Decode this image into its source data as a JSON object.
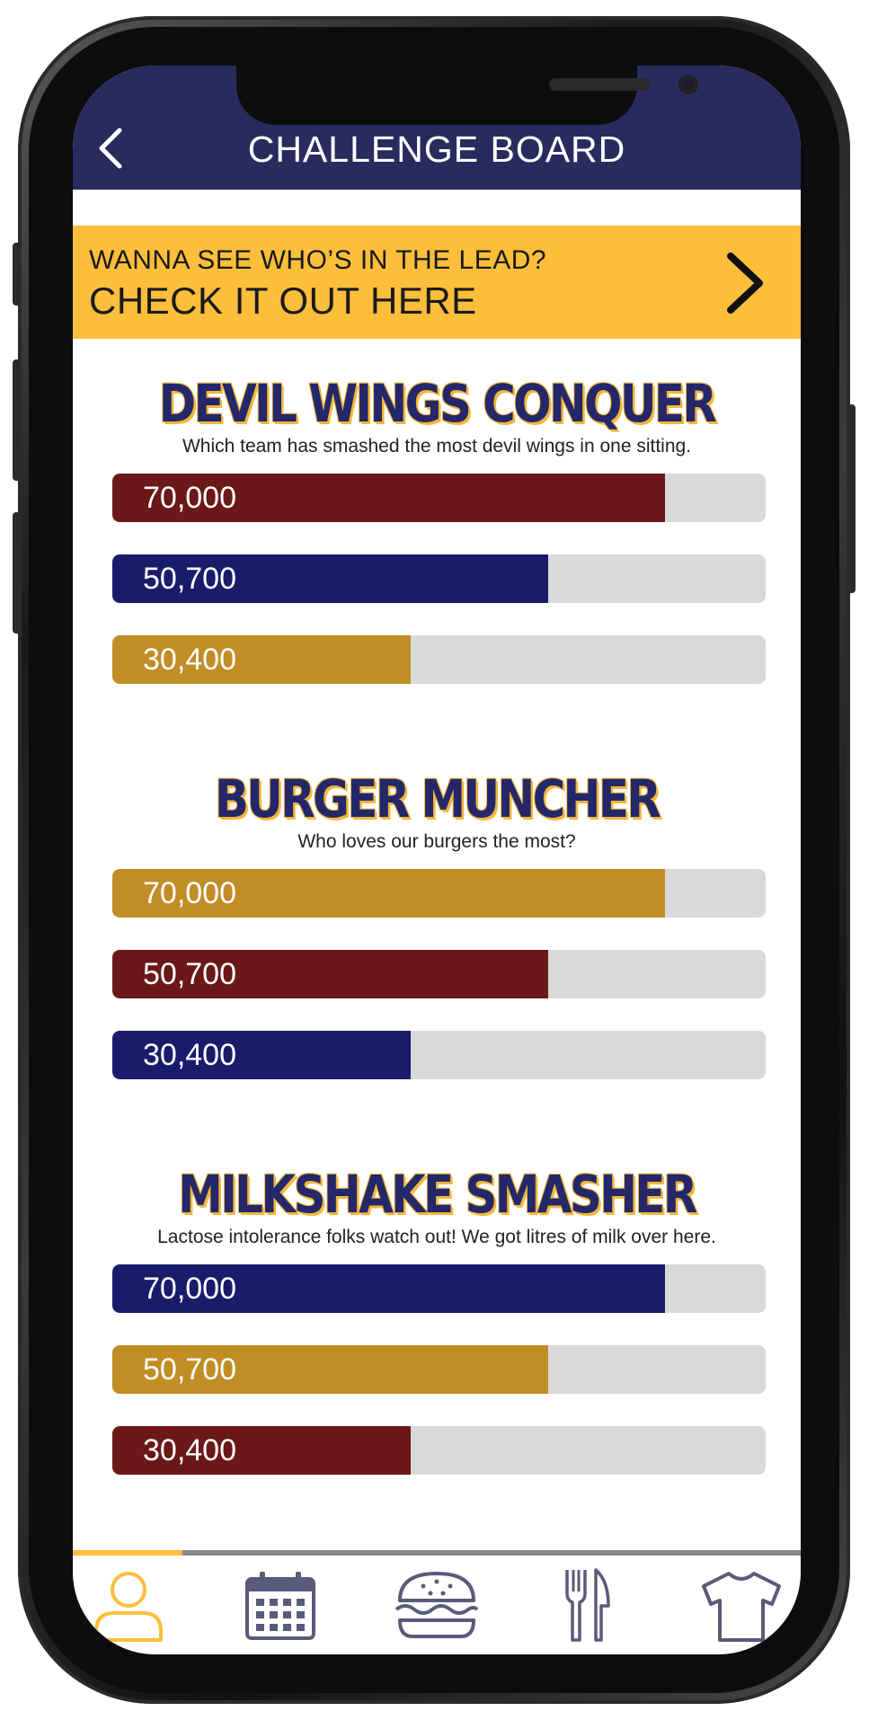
{
  "header": {
    "title": "CHALLENGE BOARD",
    "back_icon": "chevron-left-icon"
  },
  "banner": {
    "line1": "WANNA SEE WHO’S IN THE LEAD?",
    "line2": "CHECK IT OUT HERE",
    "arrow_icon": "chevron-right-icon"
  },
  "colors": {
    "header_bg": "#292b5e",
    "banner_bg": "#fcbe3b",
    "team_red": "#6b1818",
    "team_blue": "#1b1b6c",
    "team_gold": "#c18d25",
    "track": "#d9d9d9",
    "title": "#24276a",
    "title_outline": "#f3b73a",
    "tab_active": "#fcbe3b",
    "tab_inactive": "#5a5a7a"
  },
  "challenges": [
    {
      "title": "DEVIL WINGS CONQUER",
      "description": "Which team has smashed the most devil wings in one sitting.",
      "bars": [
        {
          "label": "70,000",
          "value": 70000,
          "color": "#6b1818",
          "fill_fraction": 0.846
        },
        {
          "label": "50,700",
          "value": 50700,
          "color": "#1b1b6c",
          "fill_fraction": 0.667
        },
        {
          "label": "30,400",
          "value": 30400,
          "color": "#c18d25",
          "fill_fraction": 0.457
        }
      ]
    },
    {
      "title": "BURGER MUNCHER",
      "description": "Who loves our burgers the most?",
      "bars": [
        {
          "label": "70,000",
          "value": 70000,
          "color": "#c18d25",
          "fill_fraction": 0.846
        },
        {
          "label": "50,700",
          "value": 50700,
          "color": "#6b1818",
          "fill_fraction": 0.667
        },
        {
          "label": "30,400",
          "value": 30400,
          "color": "#1b1b6c",
          "fill_fraction": 0.457
        }
      ]
    },
    {
      "title": "MILKSHAKE SMASHER",
      "description": "Lactose intolerance folks watch out! We got litres of milk over here.",
      "bars": [
        {
          "label": "70,000",
          "value": 70000,
          "color": "#1b1b6c",
          "fill_fraction": 0.846
        },
        {
          "label": "50,700",
          "value": 50700,
          "color": "#c18d25",
          "fill_fraction": 0.667
        },
        {
          "label": "30,400",
          "value": 30400,
          "color": "#6b1818",
          "fill_fraction": 0.457
        }
      ]
    }
  ],
  "tabs": [
    {
      "icon": "user-icon",
      "active": true
    },
    {
      "icon": "calendar-icon",
      "active": false
    },
    {
      "icon": "burger-icon",
      "active": false
    },
    {
      "icon": "fork-knife-icon",
      "active": false
    },
    {
      "icon": "tshirt-icon",
      "active": false
    }
  ]
}
